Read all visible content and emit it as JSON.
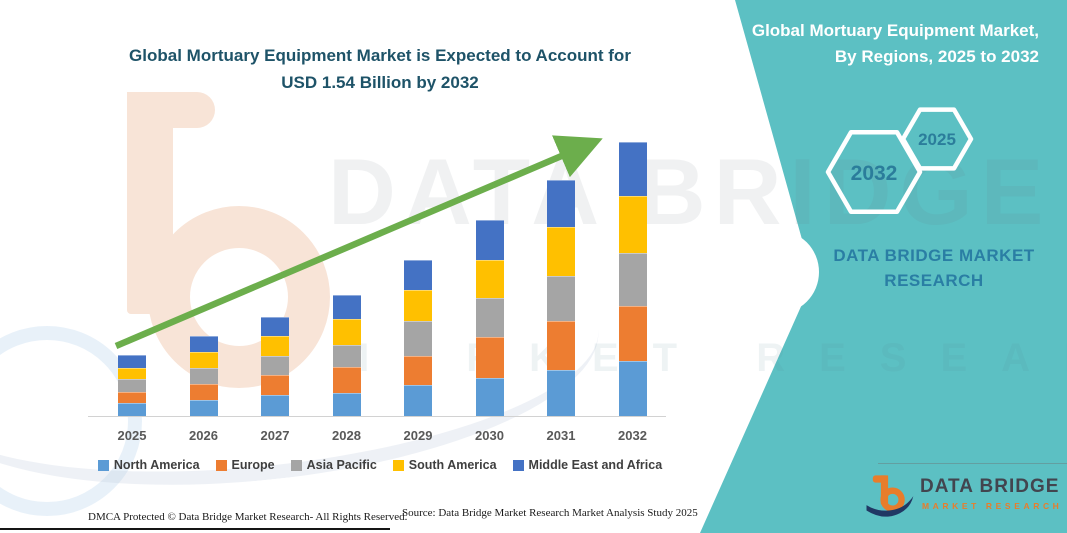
{
  "header": {
    "title_line1": "Global Mortuary Equipment Market is Expected to Account for",
    "title_line2": "USD 1.54 Billion by 2032"
  },
  "side_panel": {
    "heading_line1": "Global Mortuary Equipment Market,",
    "heading_line2": "By Regions, 2025 to 2032",
    "hexagon_end_year": "2032",
    "hexagon_start_year": "2025",
    "brand_line1": "DATA BRIDGE MARKET",
    "brand_line2": "RESEARCH",
    "panel_color": "#5CC0C3",
    "hexagon_text_color": "#2B7D9B"
  },
  "chart_data": {
    "type": "bar",
    "stacked": true,
    "title": "Global Mortuary Equipment Market is Expected to Account for USD 1.54 Billion by 2032",
    "unit": "USD billion (estimated from bar heights; 2032 total anchored to 1.54)",
    "categories": [
      "2025",
      "2026",
      "2027",
      "2028",
      "2029",
      "2030",
      "2031",
      "2032"
    ],
    "series": [
      {
        "name": "North America",
        "color": "#5B9BD5",
        "values": [
          0.075,
          0.088,
          0.118,
          0.127,
          0.172,
          0.213,
          0.257,
          0.309
        ]
      },
      {
        "name": "Europe",
        "color": "#ED7D31",
        "values": [
          0.062,
          0.094,
          0.112,
          0.15,
          0.163,
          0.23,
          0.275,
          0.309
        ]
      },
      {
        "name": "Asia Pacific",
        "color": "#A5A5A5",
        "values": [
          0.069,
          0.088,
          0.107,
          0.122,
          0.197,
          0.219,
          0.254,
          0.299
        ]
      },
      {
        "name": "South America",
        "color": "#FFC000",
        "values": [
          0.066,
          0.09,
          0.112,
          0.144,
          0.178,
          0.215,
          0.275,
          0.316
        ]
      },
      {
        "name": "Middle East and Africa",
        "color": "#4472C4",
        "values": [
          0.071,
          0.09,
          0.107,
          0.136,
          0.165,
          0.221,
          0.266,
          0.307
        ]
      }
    ],
    "totals": [
      0.343,
      0.45,
      0.556,
      0.679,
      0.875,
      1.098,
      1.327,
      1.54
    ],
    "ylim": [
      0,
      1.7
    ],
    "grid": false,
    "legend_position": "bottom",
    "trend_arrow_color": "#6CAE4C"
  },
  "footer": {
    "dmca": "DMCA Protected © Data Bridge Market Research- All Rights Reserved.",
    "source": "Source: Data Bridge Market Research Market Analysis Study 2025"
  },
  "logo": {
    "name": "DATA BRIDGE",
    "subtitle": "MARKET RESEARCH"
  },
  "watermark": {
    "text_primary": "DATA BRIDGE",
    "text_secondary": "MARKET RESEARCH"
  }
}
